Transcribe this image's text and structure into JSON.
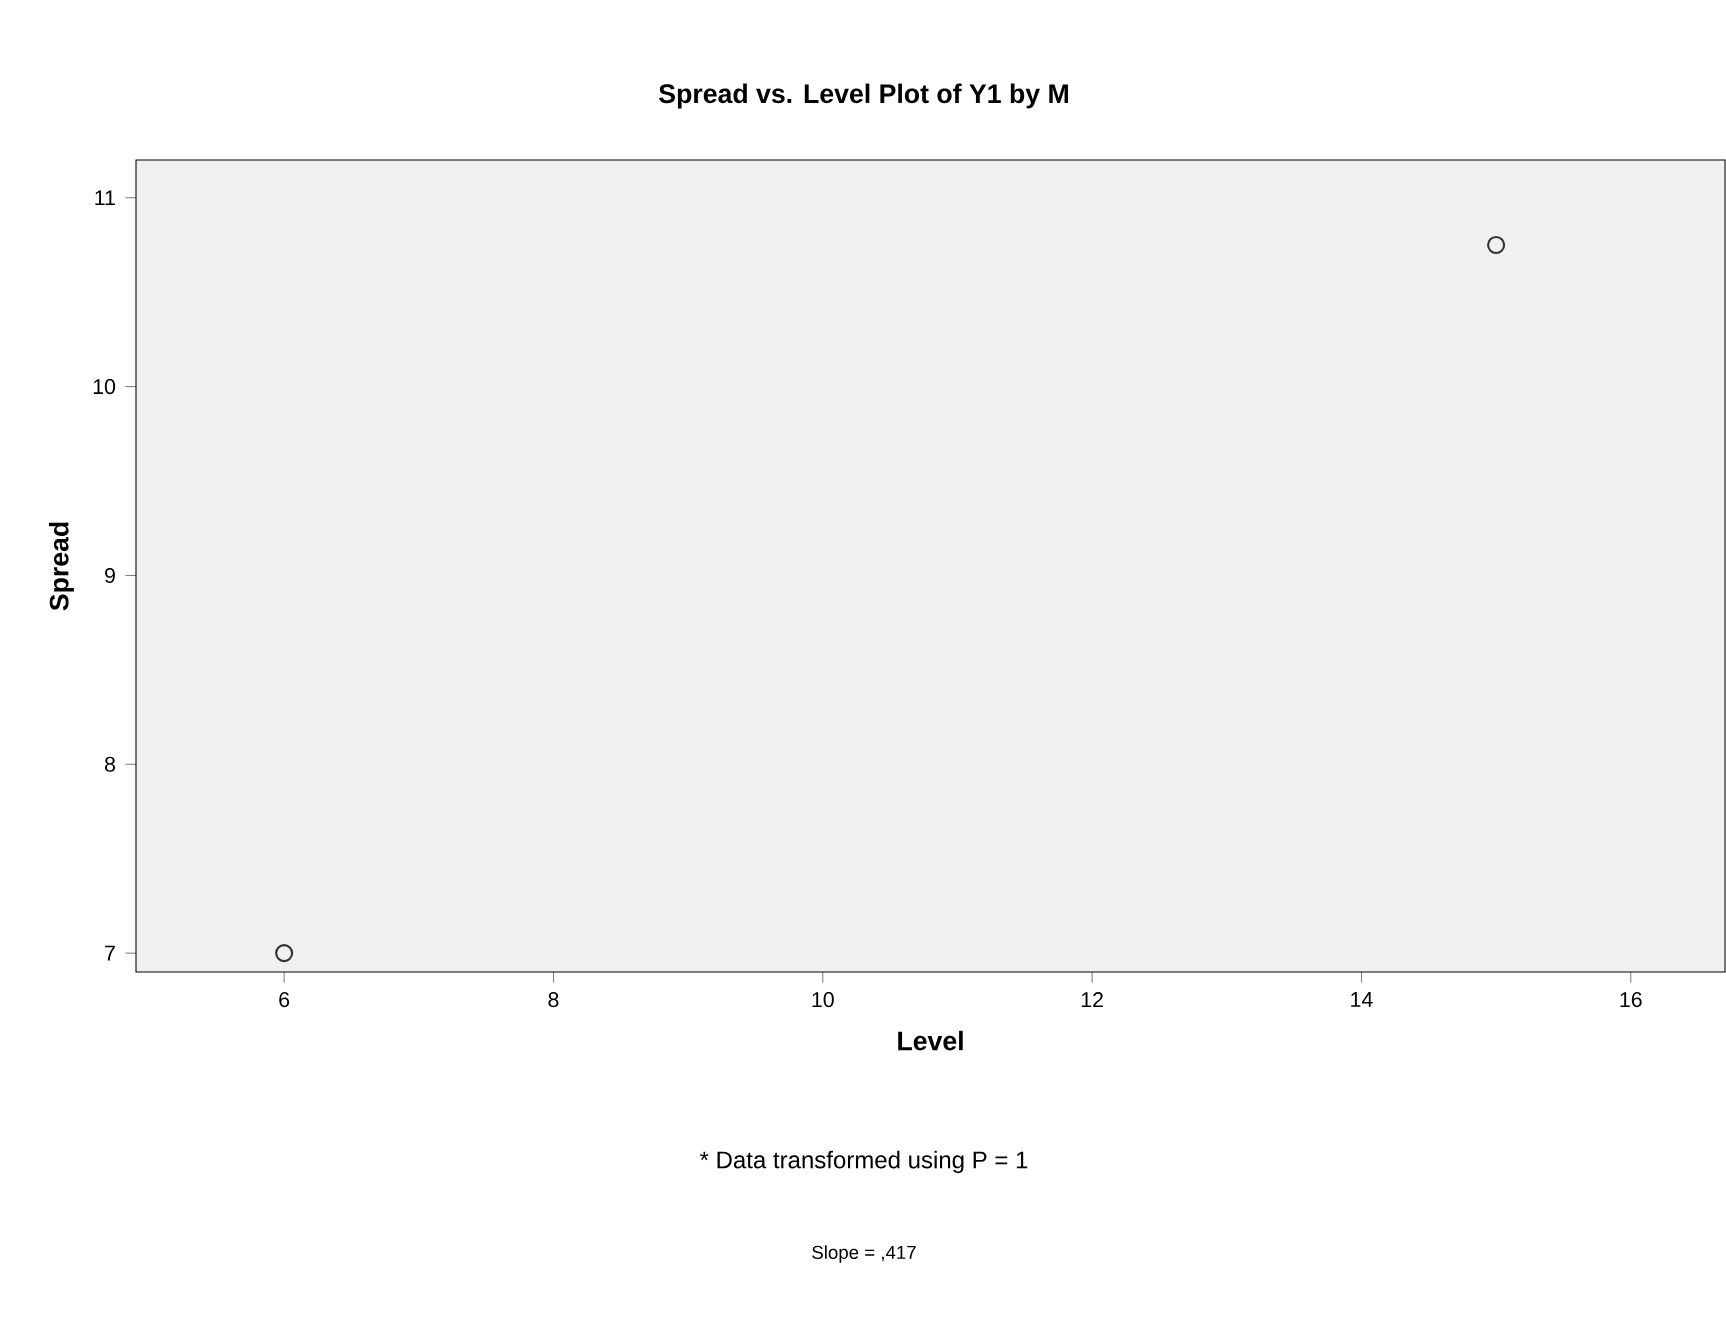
{
  "chart_data": {
    "type": "scatter",
    "title": "Spread vs. Level Plot of Y1 by M",
    "xlabel": "Level",
    "ylabel": "Spread",
    "x": [
      6,
      15
    ],
    "values": [
      7,
      10.75
    ],
    "color": "#333333",
    "marker": "circle",
    "xlim": [
      4.9,
      16.7
    ],
    "ylim": [
      6.9,
      11.2
    ],
    "xticks": [
      6,
      8,
      10,
      12,
      14,
      16
    ],
    "yticks": [
      7,
      8,
      9,
      10,
      11
    ],
    "annotations": [
      "* Data transformed using P = 1",
      "Slope = ,417"
    ]
  }
}
